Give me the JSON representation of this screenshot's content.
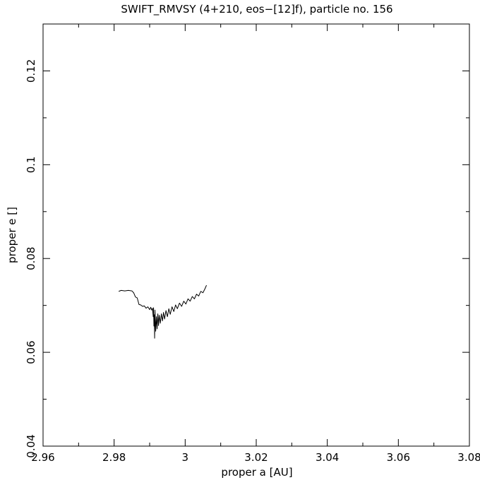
{
  "chart_data": {
    "type": "line",
    "title": "SWIFT_RMVSY (4+210, eos−[12]f), particle no. 156",
    "xlabel": "proper a [AU]",
    "ylabel": "proper e []",
    "xlim": [
      2.96,
      3.08
    ],
    "ylim": [
      0.04,
      0.13
    ],
    "xticks": [
      2.96,
      2.98,
      3.0,
      3.02,
      3.04,
      3.06,
      3.08
    ],
    "xtick_labels": [
      "2.96",
      "2.98",
      "3",
      "3.02",
      "3.04",
      "3.06",
      "3.08"
    ],
    "yticks": [
      0.04,
      0.06,
      0.08,
      0.1,
      0.12
    ],
    "ytick_labels": [
      "0.04",
      "0.06",
      "0.08",
      "0.1",
      "0.12"
    ],
    "x_minor_step": 0.01,
    "y_minor_step": 0.01,
    "grid": false,
    "line_color": "#000000",
    "series": [
      {
        "name": "",
        "x": [
          2.9813,
          2.982,
          2.983,
          2.984,
          2.985,
          2.9855,
          2.986,
          2.9865,
          2.987,
          2.9875,
          2.988,
          2.9885,
          2.989,
          2.9895,
          2.99,
          2.9903,
          2.9906,
          2.9908,
          2.991,
          2.9911,
          2.9912,
          2.9913,
          2.9914,
          2.9915,
          2.9917,
          2.9919,
          2.9921,
          2.9923,
          2.9925,
          2.9927,
          2.993,
          2.9933,
          2.9936,
          2.9939,
          2.9942,
          2.9946,
          2.995,
          2.9954,
          2.9958,
          2.9963,
          2.9968,
          2.9973,
          2.9978,
          2.9984,
          2.999,
          2.9996,
          3.0002,
          3.0008,
          3.0014,
          3.002,
          3.0026,
          3.0032,
          3.0038,
          3.0044,
          3.005,
          3.0056,
          3.006
        ],
        "y": [
          0.073,
          0.0732,
          0.0731,
          0.0732,
          0.0731,
          0.0727,
          0.0718,
          0.0716,
          0.0702,
          0.0701,
          0.0698,
          0.0699,
          0.0694,
          0.0697,
          0.0691,
          0.0696,
          0.069,
          0.0694,
          0.0676,
          0.0695,
          0.0656,
          0.068,
          0.063,
          0.069,
          0.0645,
          0.0676,
          0.065,
          0.0682,
          0.0657,
          0.0679,
          0.0662,
          0.0682,
          0.0667,
          0.0685,
          0.0671,
          0.0689,
          0.0676,
          0.0693,
          0.0681,
          0.0697,
          0.0687,
          0.0701,
          0.0693,
          0.0705,
          0.0698,
          0.0709,
          0.0703,
          0.0714,
          0.0709,
          0.0719,
          0.0714,
          0.0724,
          0.072,
          0.073,
          0.0727,
          0.0736,
          0.0743
        ]
      }
    ]
  }
}
